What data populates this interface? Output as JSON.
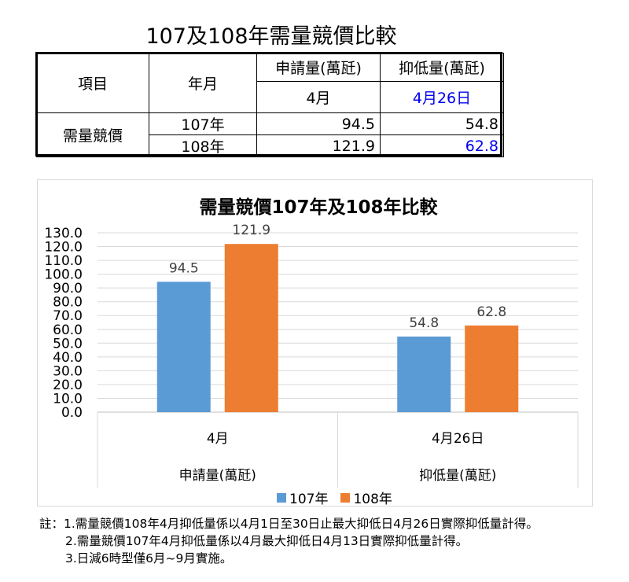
{
  "page_title": "107及108年需量競價比較",
  "table": {
    "header_item": "項目",
    "header_year": "年月",
    "col1_header": "申請量(萬瓩)",
    "col2_header": "抑低量(萬瓩)",
    "col1_sub": "4月",
    "col2_sub": "4月26日",
    "row_group_label": "需量競價",
    "rows": [
      {
        "year": "107年",
        "apply": "94.5",
        "reduce": "54.8"
      },
      {
        "year": "108年",
        "apply": "121.9",
        "reduce": "62.8"
      }
    ]
  },
  "chart_data": {
    "type": "bar",
    "title": "需量競價107年及108年比較",
    "categories": [
      {
        "top": "4月",
        "bottom": "申請量(萬瓩)"
      },
      {
        "top": "4月26日",
        "bottom": "抑低量(萬瓩)"
      }
    ],
    "series": [
      {
        "name": "107年",
        "color": "#5b9bd5",
        "values": [
          94.5,
          54.8
        ],
        "labels": [
          "94.5",
          "54.8"
        ]
      },
      {
        "name": "108年",
        "color": "#ed7d31",
        "values": [
          121.9,
          62.8
        ],
        "labels": [
          "121.9",
          "62.8"
        ]
      }
    ],
    "yticks": [
      "0.0",
      "10.0",
      "20.0",
      "30.0",
      "40.0",
      "50.0",
      "60.0",
      "70.0",
      "80.0",
      "90.0",
      "100.0",
      "110.0",
      "120.0",
      "130.0"
    ],
    "ylim": [
      0,
      130
    ],
    "grid": true,
    "legend_position": "bottom"
  },
  "notes": [
    "註：1.需量競價108年4月抑低量係以4月1日至30日止最大抑低日4月26日實際抑低量計得。",
    "2.需量競價107年4月抑低量係以4月最大抑低日4月13日實際抑低量計得。",
    "3.日減6時型僅6月~9月實施。"
  ]
}
